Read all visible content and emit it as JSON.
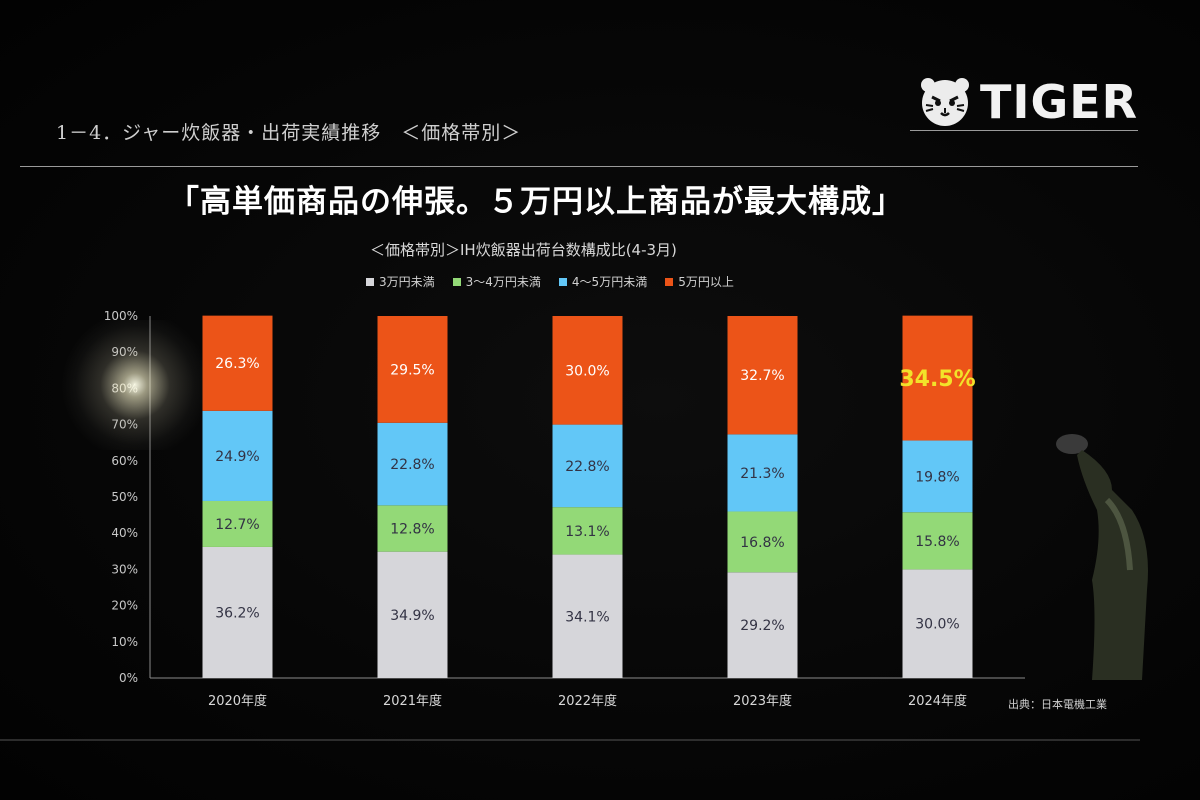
{
  "slide": {
    "section_title": "1－4．ジャー炊飯器・出荷実績推移　＜価格帯別＞",
    "logo_text": "TIGER",
    "headline": "「高単価商品の伸張。５万円以上商品が最大構成」",
    "chart_title": "＜価格帯別＞IH炊飯器出荷台数構成比(4-3月)",
    "source": "出典：日本電機工業"
  },
  "colors": {
    "under_3man": "#d6d6da",
    "3_4man": "#93d977",
    "4_5man": "#62c7f7",
    "over_5man": "#ec5418",
    "highlight": "#f2e22a"
  },
  "chart_data": {
    "type": "bar",
    "stacked": true,
    "title": "＜価格帯別＞IH炊飯器出荷台数構成比(4-3月)",
    "categories": [
      "2020年度",
      "2021年度",
      "2022年度",
      "2023年度",
      "2024年度"
    ],
    "series": [
      {
        "name": "3万円未満",
        "color": "#d6d6da",
        "values": [
          36.2,
          34.9,
          34.1,
          29.2,
          30.0
        ],
        "labels": [
          "36.2%",
          "34.9%",
          "34.1%",
          "29.2%",
          "30.0%"
        ]
      },
      {
        "name": "3～4万円未満",
        "color": "#93d977",
        "values": [
          12.7,
          12.8,
          13.1,
          16.8,
          15.8
        ],
        "labels": [
          "12.7%",
          "12.8%",
          "13.1%",
          "16.8%",
          "15.8%"
        ]
      },
      {
        "name": "4～5万円未満",
        "color": "#62c7f7",
        "values": [
          24.9,
          22.8,
          22.8,
          21.3,
          19.8
        ],
        "labels": [
          "24.9%",
          "22.8%",
          "22.8%",
          "21.3%",
          "19.8%"
        ]
      },
      {
        "name": "5万円以上",
        "color": "#ec5418",
        "values": [
          26.3,
          29.5,
          30.0,
          32.7,
          34.5
        ],
        "labels": [
          "26.3%",
          "29.5%",
          "30.0%",
          "32.7%",
          "34.5%"
        ]
      }
    ],
    "highlight": {
      "series": 3,
      "category": 4
    },
    "y_ticks": [
      "0%",
      "10%",
      "20%",
      "30%",
      "40%",
      "50%",
      "60%",
      "70%",
      "80%",
      "90%",
      "100%"
    ],
    "ylim": [
      0,
      100
    ],
    "legend": "top"
  }
}
